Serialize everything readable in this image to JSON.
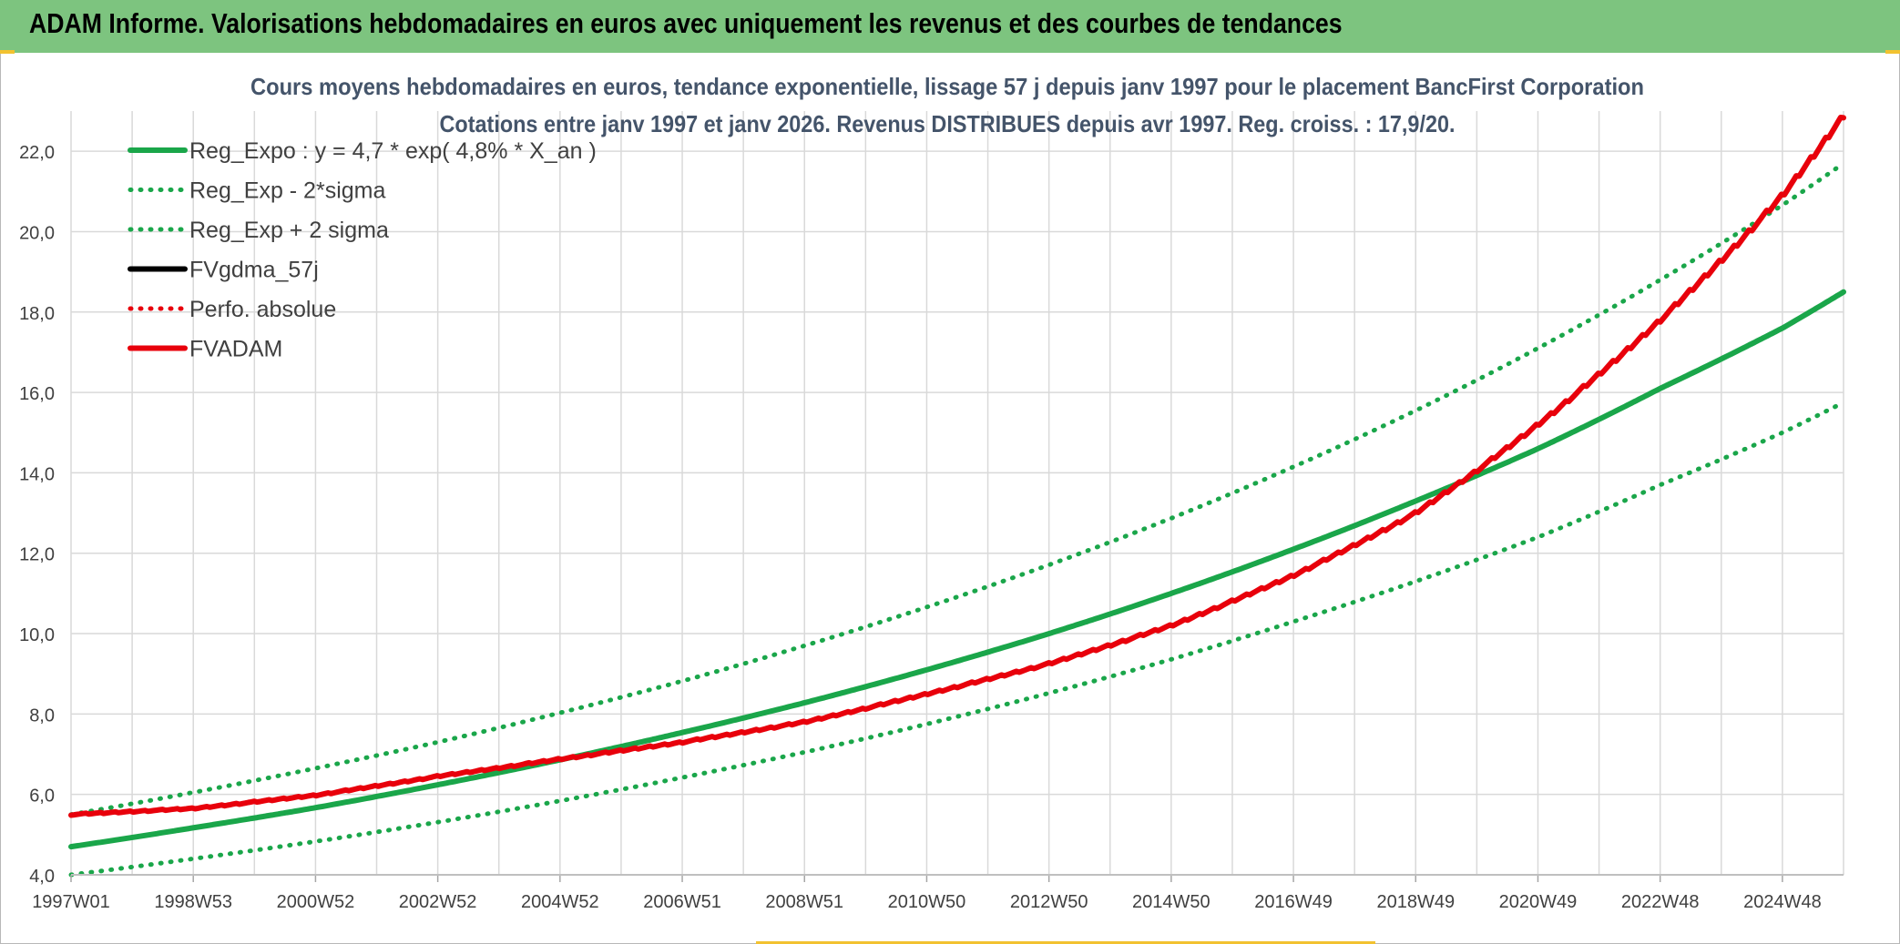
{
  "banner": {
    "title": "ADAM Informe. Valorisations hebdomadaires en euros avec uniquement les revenus et des courbes de tendances"
  },
  "colors": {
    "banner_bg": "#7dc47f",
    "reg_expo": "#1aa64a",
    "fvadam": "#e8000b",
    "fvgdma": "#000000",
    "grid": "#d9d9d9",
    "title_text": "#44546a",
    "axis_text": "#404040"
  },
  "chart_data": {
    "type": "line",
    "title": "Cours moyens hebdomadaires en euros, tendance exponentielle, lissage 57 j depuis janv 1997 pour le placement BancFirst Corporation",
    "subtitle": "Cotations entre janv 1997 et janv 2026. Revenus DISTRIBUES depuis avr 1997. Reg. croiss. : 17,9/20.",
    "xlabel": "",
    "ylabel": "",
    "x_range": [
      1997.0,
      2026.0
    ],
    "ylim": [
      4.0,
      23.0
    ],
    "y_ticks": [
      4.0,
      6.0,
      8.0,
      10.0,
      12.0,
      14.0,
      16.0,
      18.0,
      20.0,
      22.0
    ],
    "y_tick_labels": [
      "4,0",
      "6,0",
      "8,0",
      "10,0",
      "12,0",
      "14,0",
      "16,0",
      "18,0",
      "20,0",
      "22,0"
    ],
    "x_ticks": [
      1997.0,
      1999.0,
      2001.0,
      2003.0,
      2005.0,
      2007.0,
      2009.0,
      2011.0,
      2013.0,
      2015.0,
      2017.0,
      2019.0,
      2021.0,
      2023.0,
      2025.0
    ],
    "x_tick_labels": [
      "1997W01",
      "1998W53",
      "2000W52",
      "2002W52",
      "2004W52",
      "2006W51",
      "2008W51",
      "2010W50",
      "2012W50",
      "2014W50",
      "2016W49",
      "2018W49",
      "2020W49",
      "2022W48",
      "2024W48"
    ],
    "grid": true,
    "legend_position": "top-left",
    "series": [
      {
        "name": "Reg_Expo : y = 4,7 * exp( 4,8% *  X_an )",
        "style": "solid",
        "color": "#1aa64a",
        "x": [
          1997,
          1999,
          2001,
          2003,
          2005,
          2007,
          2009,
          2011,
          2013,
          2015,
          2017,
          2019,
          2021,
          2023,
          2025,
          2026
        ],
        "values": [
          4.7,
          5.17,
          5.67,
          6.24,
          6.86,
          7.54,
          8.28,
          9.1,
          10.0,
          11.0,
          12.1,
          13.3,
          14.6,
          16.1,
          17.6,
          18.5
        ]
      },
      {
        "name": "Reg_Exp - 2*sigma",
        "style": "dotted",
        "color": "#1aa64a",
        "x": [
          1997,
          1999,
          2001,
          2003,
          2005,
          2007,
          2009,
          2011,
          2013,
          2015,
          2017,
          2019,
          2021,
          2023,
          2025,
          2026
        ],
        "values": [
          4.0,
          4.4,
          4.83,
          5.31,
          5.84,
          6.42,
          7.05,
          7.75,
          8.52,
          9.36,
          10.3,
          11.3,
          12.4,
          13.7,
          15.0,
          15.75
        ]
      },
      {
        "name": "Reg_Exp + 2 sigma",
        "style": "dotted",
        "color": "#1aa64a",
        "x": [
          1997,
          1999,
          2001,
          2003,
          2005,
          2007,
          2009,
          2011,
          2013,
          2015,
          2017,
          2019,
          2021,
          2023,
          2025,
          2026
        ],
        "values": [
          5.5,
          6.05,
          6.65,
          7.3,
          8.03,
          8.82,
          9.7,
          10.66,
          11.71,
          12.87,
          14.15,
          15.55,
          17.1,
          18.8,
          20.66,
          21.7
        ]
      },
      {
        "name": "FVgdma_57j",
        "style": "solid",
        "color": "#000000",
        "x": [],
        "values": []
      },
      {
        "name": "Perfo. absolue",
        "style": "dotted",
        "color": "#e8000b",
        "x": [],
        "values": []
      },
      {
        "name": "FVADAM",
        "style": "solid-stepped",
        "color": "#e8000b",
        "x": [
          1997,
          1999,
          2001,
          2003,
          2005,
          2007,
          2009,
          2011,
          2013,
          2015,
          2017,
          2019,
          2021,
          2023,
          2025,
          2026
        ],
        "values": [
          5.5,
          5.65,
          5.98,
          6.45,
          6.88,
          7.3,
          7.8,
          8.5,
          9.25,
          10.2,
          11.45,
          13.0,
          15.2,
          17.8,
          20.9,
          22.9
        ]
      }
    ]
  }
}
